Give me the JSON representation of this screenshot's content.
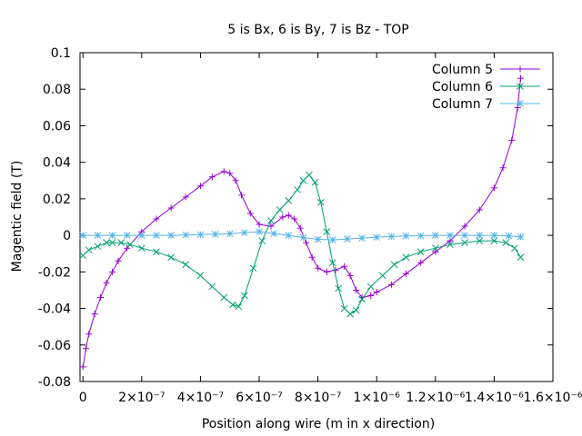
{
  "chart_data": {
    "type": "line",
    "title": "5 is Bx, 6 is By, 7 is Bz - TOP",
    "xlabel": "Position along wire (m in x direction)",
    "ylabel": "Magentic field (T)",
    "xlim": [
      -1e-08,
      1.6e-06
    ],
    "ylim": [
      -0.08,
      0.1
    ],
    "x_ticks": [
      0,
      2e-07,
      4e-07,
      6e-07,
      8e-07,
      1e-06,
      1.2e-06,
      1.4e-06,
      1.6e-06
    ],
    "x_tick_labels": [
      "0",
      "2×10⁻⁷",
      "4×10⁻⁷",
      "6×10⁻⁷",
      "8×10⁻⁷",
      "1×10⁻⁶",
      "1.2×10⁻⁶",
      "1.4×10⁻⁶",
      "1.6×10⁻⁶"
    ],
    "y_ticks": [
      -0.08,
      -0.06,
      -0.04,
      -0.02,
      0,
      0.02,
      0.04,
      0.06,
      0.08,
      0.1
    ],
    "y_tick_labels": [
      "-0.08",
      "-0.06",
      "-0.04",
      "-0.02",
      "0",
      "0.02",
      "0.04",
      "0.06",
      "0.08",
      "0.1"
    ],
    "grid": false,
    "legend_position": "top-right",
    "series": [
      {
        "name": "Column 5",
        "color": "#9400d3",
        "marker": "plus",
        "x": [
          0,
          1e-08,
          2e-08,
          4e-08,
          6e-08,
          8e-08,
          1e-07,
          1.2e-07,
          1.5e-07,
          2e-07,
          2.5e-07,
          3e-07,
          3.5e-07,
          4e-07,
          4.4e-07,
          4.8e-07,
          5e-07,
          5.2e-07,
          5.4e-07,
          5.7e-07,
          6e-07,
          6.4e-07,
          6.8e-07,
          7e-07,
          7.2e-07,
          7.4e-07,
          7.6e-07,
          7.8e-07,
          8e-07,
          8.3e-07,
          8.6e-07,
          8.9e-07,
          9.1e-07,
          9.3e-07,
          9.5e-07,
          9.8e-07,
          1e-06,
          1.05e-06,
          1.1e-06,
          1.15e-06,
          1.2e-06,
          1.25e-06,
          1.3e-06,
          1.35e-06,
          1.4e-06,
          1.43e-06,
          1.46e-06,
          1.48e-06,
          1.49e-06
        ],
        "y": [
          -0.072,
          -0.062,
          -0.054,
          -0.043,
          -0.034,
          -0.026,
          -0.02,
          -0.014,
          -0.007,
          0.002,
          0.009,
          0.015,
          0.021,
          0.027,
          0.032,
          0.035,
          0.034,
          0.03,
          0.022,
          0.012,
          0.006,
          0.005,
          0.01,
          0.011,
          0.009,
          0.004,
          -0.004,
          -0.012,
          -0.018,
          -0.02,
          -0.019,
          -0.017,
          -0.022,
          -0.03,
          -0.034,
          -0.033,
          -0.031,
          -0.027,
          -0.021,
          -0.015,
          -0.009,
          -0.003,
          0.005,
          0.014,
          0.026,
          0.037,
          0.052,
          0.07,
          0.086
        ]
      },
      {
        "name": "Column 6",
        "color": "#009e73",
        "marker": "cross",
        "x": [
          0,
          2e-08,
          5e-08,
          8e-08,
          1e-07,
          1.3e-07,
          1.6e-07,
          2e-07,
          2.5e-07,
          3e-07,
          3.5e-07,
          4e-07,
          4.4e-07,
          4.8e-07,
          5.1e-07,
          5.3e-07,
          5.5e-07,
          5.8e-07,
          6.1e-07,
          6.4e-07,
          6.7e-07,
          7e-07,
          7.3e-07,
          7.5e-07,
          7.7e-07,
          7.9e-07,
          8.1e-07,
          8.3e-07,
          8.5e-07,
          8.7e-07,
          8.9e-07,
          9.1e-07,
          9.3e-07,
          9.5e-07,
          9.8e-07,
          1.02e-06,
          1.06e-06,
          1.1e-06,
          1.15e-06,
          1.2e-06,
          1.25e-06,
          1.3e-06,
          1.35e-06,
          1.4e-06,
          1.44e-06,
          1.47e-06,
          1.49e-06
        ],
        "y": [
          -0.011,
          -0.008,
          -0.006,
          -0.004,
          -0.004,
          -0.004,
          -0.005,
          -0.007,
          -0.009,
          -0.012,
          -0.016,
          -0.022,
          -0.028,
          -0.034,
          -0.038,
          -0.039,
          -0.033,
          -0.018,
          -0.003,
          0.008,
          0.014,
          0.019,
          0.025,
          0.03,
          0.033,
          0.029,
          0.018,
          0.002,
          -0.015,
          -0.029,
          -0.04,
          -0.043,
          -0.041,
          -0.035,
          -0.028,
          -0.022,
          -0.016,
          -0.012,
          -0.009,
          -0.007,
          -0.005,
          -0.004,
          -0.003,
          -0.003,
          -0.004,
          -0.007,
          -0.012
        ]
      },
      {
        "name": "Column 7",
        "color": "#56b4e9",
        "marker": "star",
        "x": [
          0,
          5e-08,
          1e-07,
          1.5e-07,
          2e-07,
          2.5e-07,
          3e-07,
          3.5e-07,
          4e-07,
          4.5e-07,
          5e-07,
          5.5e-07,
          6e-07,
          6.5e-07,
          7e-07,
          7.5e-07,
          8e-07,
          8.5e-07,
          9e-07,
          9.5e-07,
          1e-06,
          1.05e-06,
          1.1e-06,
          1.15e-06,
          1.2e-06,
          1.25e-06,
          1.3e-06,
          1.35e-06,
          1.4e-06,
          1.45e-06,
          1.49e-06
        ],
        "y": [
          0,
          0,
          0,
          0,
          0,
          0,
          0,
          0.0002,
          0.0004,
          0.0006,
          0.0009,
          0.0015,
          0.002,
          0.001,
          0,
          -0.0012,
          -0.0022,
          -0.0025,
          -0.002,
          -0.0015,
          -0.001,
          -0.0006,
          -0.0003,
          -0.0002,
          0,
          0,
          0,
          0,
          0,
          -0.0003,
          -0.0008
        ]
      }
    ]
  }
}
